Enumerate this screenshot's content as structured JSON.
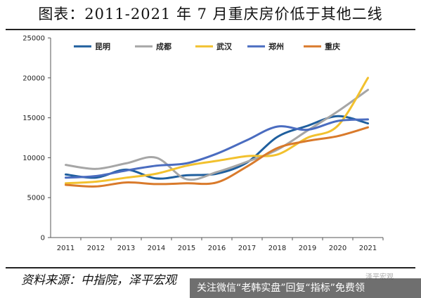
{
  "title": "图表：2011-2021 年 7 月重庆房价低于其他二线",
  "source": "资料来源：中指院，泽平宏观",
  "watermark": "关注微信“老韩实盘”回复“指标”免费领",
  "watermark_mark": "泽平宏观",
  "chart_data": {
    "type": "line",
    "title": "",
    "xlabel": "",
    "ylabel": "",
    "x": [
      "2011",
      "2012",
      "2013",
      "2014",
      "2015",
      "2016",
      "2017",
      "2018",
      "2019",
      "2020",
      "2021"
    ],
    "ylim": [
      0,
      25000
    ],
    "yticks": [
      0,
      5000,
      10000,
      15000,
      20000,
      25000
    ],
    "grid": false,
    "legend_position": "top",
    "series": [
      {
        "name": "昆明",
        "color": "#1f5f9e",
        "values": [
          7900,
          7500,
          8500,
          7400,
          7800,
          8000,
          9400,
          12600,
          14000,
          15200,
          14300
        ]
      },
      {
        "name": "成都",
        "color": "#a6a6a6",
        "values": [
          9100,
          8600,
          9300,
          10000,
          7300,
          8200,
          9500,
          11000,
          13400,
          15800,
          18500
        ]
      },
      {
        "name": "武汉",
        "color": "#f2c12e",
        "values": [
          6800,
          7000,
          7500,
          8000,
          9000,
          9600,
          10200,
          10400,
          12500,
          14000,
          20000
        ]
      },
      {
        "name": "郑州",
        "color": "#4a6cc0",
        "values": [
          7500,
          7700,
          8400,
          9000,
          9300,
          10500,
          12200,
          13900,
          13500,
          14600,
          14800
        ]
      },
      {
        "name": "重庆",
        "color": "#d97a2b",
        "values": [
          6600,
          6400,
          6900,
          6700,
          6800,
          6900,
          8900,
          11200,
          12100,
          12700,
          13800
        ]
      }
    ]
  }
}
